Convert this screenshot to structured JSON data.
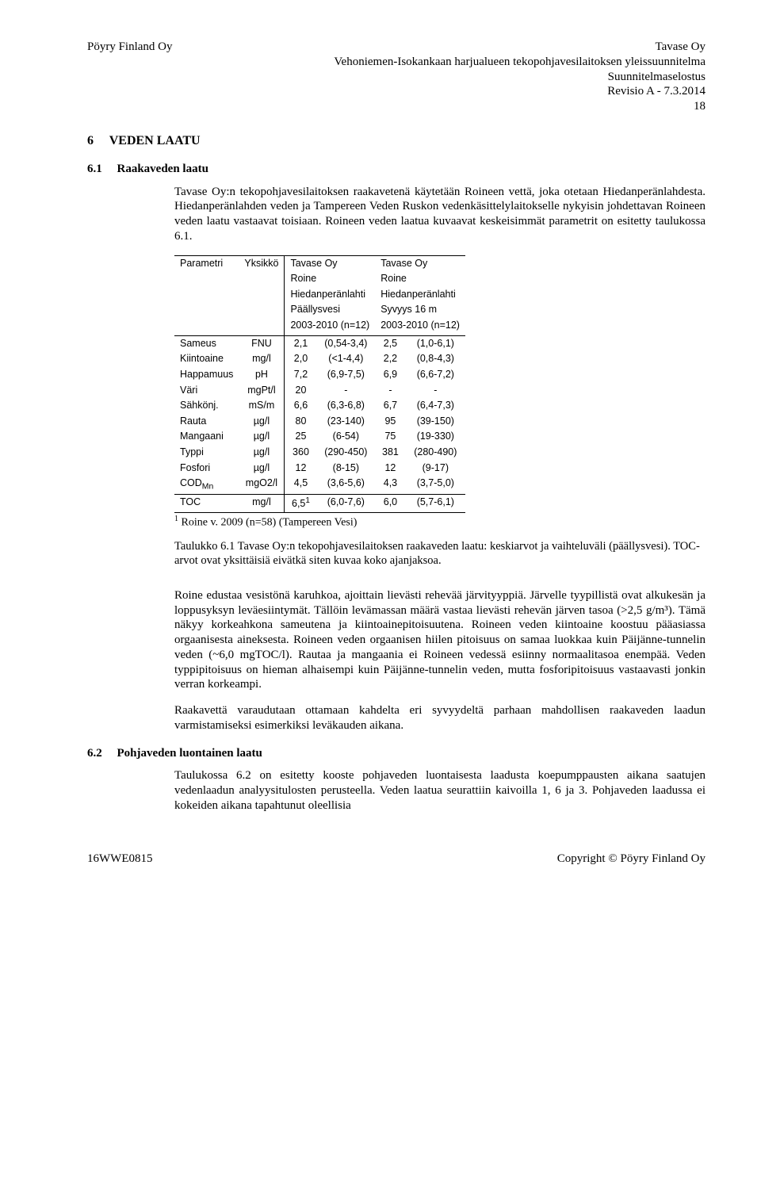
{
  "header": {
    "left": "Pöyry Finland Oy",
    "right1": "Tavase Oy",
    "right2": "Vehoniemen-Isokankaan harjualueen tekopohjavesilaitoksen yleissuunnitelma",
    "right3": "Suunnitelmaselostus",
    "right4": "Revisio A - 7.3.2014",
    "pageNum": "18"
  },
  "s6": {
    "num": "6",
    "title": "VEDEN LAATU"
  },
  "s6_1": {
    "num": "6.1",
    "title": "Raakaveden laatu",
    "p1": "Tavase Oy:n tekopohjavesilaitoksen raakavetenä käytetään Roineen vettä, joka otetaan Hiedanperänlahdesta. Hiedanperänlahden veden ja Tampereen Veden Ruskon vedenkäsittelylaitokselle nykyisin johdettavan Roineen veden laatu vastaavat toisiaan. Roineen veden laatua kuvaavat keskeisimmät parametrit on esitetty taulukossa 6.1."
  },
  "table": {
    "h": {
      "param": "Parametri",
      "unit": "Yksikkö",
      "c1a": "Tavase Oy",
      "c1b": "Roine",
      "c1c": "Hiedanperänlahti",
      "c1d": "Päällysvesi",
      "c1e": "2003-2010 (n=12)",
      "c2a": "Tavase Oy",
      "c2b": "Roine",
      "c2c": "Hiedanperänlahti",
      "c2d": "Syvyys 16 m",
      "c2e": "2003-2010 (n=12)"
    },
    "rows": [
      {
        "p": "Sameus",
        "u": "FNU",
        "v1": "2,1",
        "r1": "(0,54-3,4)",
        "v2": "2,5",
        "r2": "(1,0-6,1)"
      },
      {
        "p": "Kiintoaine",
        "u": "mg/l",
        "v1": "2,0",
        "r1": "(<1-4,4)",
        "v2": "2,2",
        "r2": "(0,8-4,3)"
      },
      {
        "p": "Happamuus",
        "u": "pH",
        "v1": "7,2",
        "r1": "(6,9-7,5)",
        "v2": "6,9",
        "r2": "(6,6-7,2)"
      },
      {
        "p": "Väri",
        "u": "mgPt/l",
        "v1": "20",
        "r1": "-",
        "v2": "-",
        "r2": "-"
      },
      {
        "p": "Sähkönj.",
        "u": "mS/m",
        "v1": "6,6",
        "r1": "(6,3-6,8)",
        "v2": "6,7",
        "r2": "(6,4-7,3)"
      },
      {
        "p": "Rauta",
        "u": "µg/l",
        "v1": "80",
        "r1": "(23-140)",
        "v2": "95",
        "r2": "(39-150)"
      },
      {
        "p": "Mangaani",
        "u": "µg/l",
        "v1": "25",
        "r1": "(6-54)",
        "v2": "75",
        "r2": "(19-330)"
      },
      {
        "p": "Typpi",
        "u": "µg/l",
        "v1": "360",
        "r1": "(290-450)",
        "v2": "381",
        "r2": "(280-490)"
      },
      {
        "p": "Fosfori",
        "u": "µg/l",
        "v1": "12",
        "r1": "(8-15)",
        "v2": "12",
        "r2": "(9-17)"
      }
    ],
    "cod": {
      "p": "COD",
      "sub": "Mn",
      "u": "mgO2/l",
      "v1": "4,5",
      "r1": "(3,6-5,6)",
      "v2": "4,3",
      "r2": "(3,7-5,0)"
    },
    "toc": {
      "p": "TOC",
      "u": "mg/l",
      "v1": "6,5",
      "sup": "1",
      "r1": "(6,0-7,6)",
      "v2": "6,0",
      "r2": "(5,7-6,1)"
    }
  },
  "footnote": "Roine v. 2009 (n=58) (Tampereen Vesi)",
  "caption": "Taulukko 6.1 Tavase Oy:n tekopohjavesilaitoksen raakaveden laatu: keskiarvot ja vaihteluväli (päällysvesi). TOC-arvot ovat yksittäisiä eivätkä siten kuvaa koko ajanjaksoa.",
  "p_after": {
    "p1": "Roine edustaa vesistönä karuhkoa, ajoittain lievästi rehevää järvityyppiä. Järvelle tyypillistä ovat alkukesän ja loppusyksyn leväesiintymät. Tällöin levämassan määrä vastaa lievästi rehevän järven tasoa (>2,5 g/m³). Tämä näkyy korkeahkona sameutena ja kiintoainepitoisuutena. Roineen veden kiintoaine koostuu pääasiassa orgaanisesta aineksesta. Roineen veden orgaanisen hiilen pitoisuus on samaa luokkaa kuin Päijänne-tunnelin veden (~6,0 mgTOC/l). Rautaa ja mangaania ei Roineen vedessä esiinny normaalitasoa enempää. Veden typpipitoisuus on hieman alhaisempi kuin Päijänne-tunnelin veden, mutta fosforipitoisuus vastaavasti jonkin verran korkeampi.",
    "p2": "Raakavettä varaudutaan ottamaan kahdelta eri syvyydeltä parhaan mahdollisen raakaveden laadun varmistamiseksi esimerkiksi leväkauden aikana."
  },
  "s6_2": {
    "num": "6.2",
    "title": "Pohjaveden luontainen laatu",
    "p1": "Taulukossa 6.2 on esitetty kooste pohjaveden luontaisesta laadusta koepumppausten aikana saatujen vedenlaadun analyysitulosten perusteella. Veden laatua seurattiin kaivoilla 1, 6 ja 3. Pohjaveden laadussa ei kokeiden aikana tapahtunut oleellisia"
  },
  "footer": {
    "left": "16WWE0815",
    "right": "Copyright © Pöyry Finland Oy"
  }
}
